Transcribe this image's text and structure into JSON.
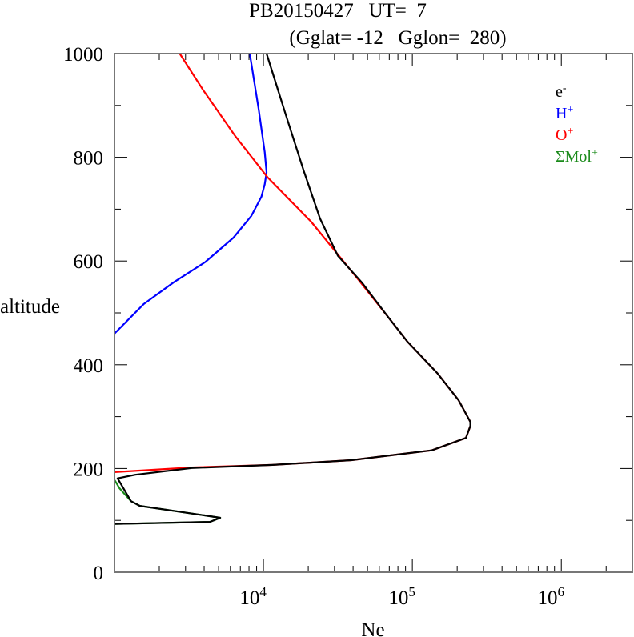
{
  "chart_data": {
    "type": "line",
    "title_line1": "PB20150427   UT=  7",
    "title_line2": "(Gglat= -12   Gglon=  280)",
    "xlabel": "Ne",
    "ylabel": "altitude",
    "xscale": "log",
    "xlim": [
      1000,
      3000000
    ],
    "ylim": [
      0,
      1000
    ],
    "xticks": [
      {
        "value": 10000,
        "base": "10",
        "exp": "4"
      },
      {
        "value": 100000,
        "base": "10",
        "exp": "5"
      },
      {
        "value": 1000000,
        "base": "10",
        "exp": "6"
      }
    ],
    "yticks": [
      0,
      200,
      400,
      600,
      800,
      1000
    ],
    "ytick_labels": [
      "0",
      "200",
      "400",
      "600",
      "800",
      "1000"
    ],
    "legend_position": "top-right",
    "series": [
      {
        "name": "e-",
        "label_base": "e",
        "label_sup": "-",
        "color": "#000000",
        "points": [
          [
            10500,
            1000
          ],
          [
            14100,
            883
          ],
          [
            18600,
            775
          ],
          [
            24000,
            682
          ],
          [
            31600,
            610
          ],
          [
            45700,
            559
          ],
          [
            69200,
            491
          ],
          [
            93000,
            444
          ],
          [
            148000,
            383
          ],
          [
            204000,
            332
          ],
          [
            245000,
            290
          ],
          [
            245000,
            282
          ],
          [
            229000,
            259
          ],
          [
            135000,
            235
          ],
          [
            38900,
            216
          ],
          [
            11500,
            207
          ],
          [
            3300,
            201
          ],
          [
            1380,
            188
          ],
          [
            1050,
            181
          ],
          [
            1290,
            137
          ],
          [
            1480,
            128
          ],
          [
            4370,
            108
          ],
          [
            5130,
            105
          ],
          [
            4370,
            97
          ],
          [
            1000,
            93
          ]
        ]
      },
      {
        "name": "H+",
        "label_base": "H",
        "label_sup": "+",
        "color": "#0000ff",
        "points": [
          [
            8100,
            1000
          ],
          [
            9300,
            892
          ],
          [
            10200,
            810
          ],
          [
            10500,
            771
          ],
          [
            10200,
            748
          ],
          [
            9700,
            724
          ],
          [
            8300,
            687
          ],
          [
            6300,
            645
          ],
          [
            4070,
            598
          ],
          [
            2500,
            559
          ],
          [
            1570,
            517
          ],
          [
            1000,
            460
          ]
        ]
      },
      {
        "name": "O+",
        "label_base": "O",
        "label_sup": "+",
        "color": "#ff0000",
        "points": [
          [
            2740,
            1000
          ],
          [
            3910,
            931
          ],
          [
            6460,
            841
          ],
          [
            10700,
            761
          ],
          [
            20900,
            676
          ],
          [
            43700,
            563
          ],
          [
            69200,
            491
          ],
          [
            93000,
            444
          ],
          [
            148000,
            383
          ],
          [
            204000,
            332
          ],
          [
            245000,
            290
          ],
          [
            245000,
            282
          ],
          [
            229000,
            259
          ],
          [
            135000,
            235
          ],
          [
            38900,
            216
          ],
          [
            11500,
            207
          ],
          [
            3300,
            202
          ],
          [
            1000,
            193
          ]
        ]
      },
      {
        "name": "ΣMol+",
        "label_base": "ΣMol",
        "label_sup": "+",
        "color": "#1a8a1a",
        "points": [
          [
            1000,
            178
          ],
          [
            1030,
            172
          ],
          [
            1080,
            162
          ],
          [
            1290,
            137
          ],
          [
            1480,
            128
          ],
          [
            4370,
            108
          ],
          [
            5130,
            105
          ],
          [
            4370,
            97
          ],
          [
            1000,
            93
          ]
        ]
      }
    ]
  }
}
